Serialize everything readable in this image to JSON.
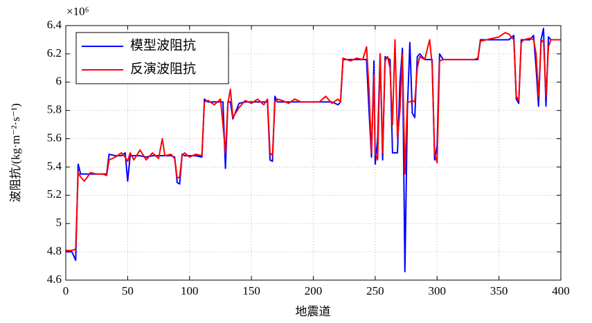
{
  "chart_data": {
    "type": "line",
    "xlabel": "地震道",
    "ylabel": "波阻抗/(kg·m⁻²·s⁻¹)",
    "y_exponent_label": "×10⁶",
    "xlim": [
      0,
      400
    ],
    "xticks": [
      0,
      50,
      100,
      150,
      200,
      250,
      300,
      350,
      400
    ],
    "ylim": [
      4.6,
      6.4
    ],
    "yticks": [
      4.6,
      4.8,
      5,
      5.2,
      5.4,
      5.6,
      5.8,
      6,
      6.2,
      6.4
    ],
    "grid": true,
    "legend": "upper left",
    "x": [
      0,
      5,
      8,
      10,
      12,
      15,
      20,
      25,
      30,
      33,
      35,
      40,
      45,
      48,
      50,
      52,
      55,
      60,
      65,
      70,
      75,
      78,
      80,
      85,
      88,
      90,
      92,
      94,
      96,
      100,
      105,
      110,
      112,
      115,
      120,
      125,
      127,
      129,
      131,
      133,
      135,
      140,
      145,
      150,
      155,
      160,
      163,
      165,
      167,
      169,
      171,
      175,
      180,
      185,
      190,
      195,
      200,
      205,
      210,
      215,
      220,
      222,
      224,
      230,
      235,
      240,
      243,
      245,
      247,
      249,
      250,
      252,
      254,
      256,
      258,
      260,
      262,
      264,
      266,
      268,
      270,
      272,
      274,
      276,
      278,
      280,
      282,
      284,
      286,
      290,
      294,
      296,
      298,
      300,
      302,
      305,
      310,
      320,
      330,
      333,
      335,
      340,
      350,
      355,
      358,
      362,
      364,
      366,
      368,
      370,
      375,
      378,
      380,
      382,
      384,
      386,
      388,
      390,
      392,
      395,
      400
    ],
    "series": [
      {
        "name": "模型波阻抗",
        "color": "#0000ff",
        "values": [
          4.8,
          4.8,
          4.74,
          5.42,
          5.35,
          5.35,
          5.35,
          5.35,
          5.35,
          5.35,
          5.49,
          5.48,
          5.48,
          5.5,
          5.3,
          5.48,
          5.48,
          5.48,
          5.47,
          5.48,
          5.48,
          5.48,
          5.48,
          5.48,
          5.47,
          5.29,
          5.28,
          5.49,
          5.48,
          5.48,
          5.48,
          5.47,
          5.88,
          5.86,
          5.86,
          5.86,
          5.86,
          5.39,
          5.86,
          5.86,
          5.74,
          5.85,
          5.86,
          5.86,
          5.86,
          5.86,
          5.86,
          5.45,
          5.44,
          5.9,
          5.86,
          5.86,
          5.86,
          5.86,
          5.86,
          5.86,
          5.86,
          5.86,
          5.86,
          5.86,
          5.84,
          5.86,
          6.16,
          6.16,
          6.16,
          6.16,
          6.16,
          5.8,
          5.47,
          6.15,
          5.42,
          5.6,
          6.2,
          5.45,
          6.18,
          6.17,
          6.16,
          5.5,
          5.5,
          5.5,
          6.0,
          6.24,
          4.66,
          5.8,
          6.28,
          5.78,
          5.75,
          6.18,
          6.2,
          6.16,
          6.16,
          6.16,
          5.45,
          5.55,
          6.2,
          6.16,
          6.16,
          6.16,
          6.16,
          6.16,
          6.3,
          6.3,
          6.3,
          6.3,
          6.3,
          6.33,
          5.88,
          5.85,
          6.3,
          6.3,
          6.3,
          6.33,
          6.1,
          5.83,
          6.3,
          6.38,
          5.83,
          6.32,
          6.3,
          6.3,
          6.3
        ]
      },
      {
        "name": "反演波阻抗",
        "color": "#ff0000",
        "values": [
          4.81,
          4.81,
          4.82,
          5.36,
          5.33,
          5.3,
          5.36,
          5.35,
          5.35,
          5.34,
          5.45,
          5.47,
          5.5,
          5.47,
          5.44,
          5.5,
          5.45,
          5.52,
          5.45,
          5.5,
          5.46,
          5.6,
          5.48,
          5.49,
          5.46,
          5.32,
          5.33,
          5.48,
          5.5,
          5.47,
          5.49,
          5.48,
          5.86,
          5.87,
          5.84,
          5.88,
          5.7,
          5.5,
          5.85,
          5.95,
          5.75,
          5.82,
          5.87,
          5.85,
          5.88,
          5.84,
          5.88,
          5.5,
          5.48,
          5.86,
          5.88,
          5.87,
          5.85,
          5.88,
          5.86,
          5.86,
          5.86,
          5.86,
          5.9,
          5.85,
          5.88,
          5.86,
          6.17,
          6.15,
          6.17,
          6.16,
          6.25,
          5.95,
          5.5,
          6.05,
          5.5,
          5.45,
          6.2,
          5.5,
          6.15,
          6.18,
          6.1,
          5.7,
          6.3,
          5.6,
          5.8,
          6.2,
          5.35,
          5.86,
          5.86,
          5.87,
          5.86,
          6.1,
          6.18,
          6.16,
          6.3,
          6.12,
          5.5,
          5.43,
          6.15,
          6.16,
          6.16,
          6.16,
          6.16,
          6.17,
          6.29,
          6.3,
          6.32,
          6.35,
          6.34,
          6.3,
          5.9,
          5.87,
          6.28,
          6.3,
          6.31,
          6.3,
          6.2,
          5.9,
          6.28,
          6.3,
          5.9,
          6.25,
          6.3,
          6.3,
          6.3
        ]
      }
    ]
  }
}
